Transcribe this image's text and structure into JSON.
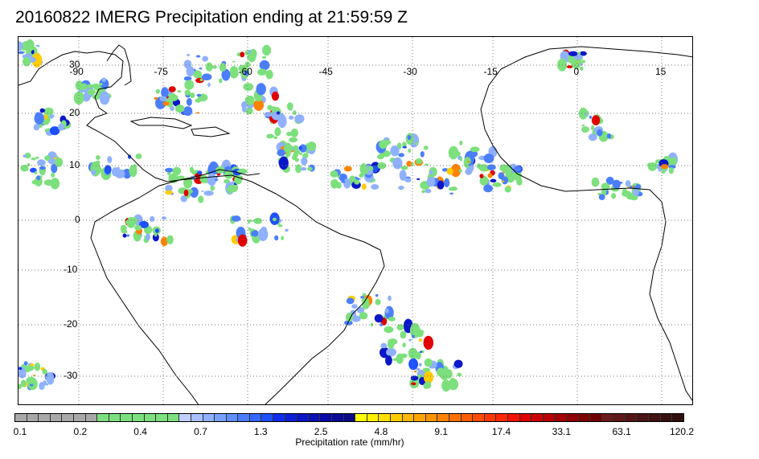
{
  "title": "20160822 IMERG Precipitation ending at 21:59:59 Z",
  "map": {
    "lon_labels": [
      "-90",
      "-75",
      "-60",
      "-45",
      "-30",
      "-15",
      "0",
      "15"
    ],
    "lat_labels": [
      "30",
      "20",
      "10",
      "0",
      "-10",
      "-20",
      "-30"
    ],
    "grid": "dotted",
    "coastline_color": "#000000"
  },
  "colorbar": {
    "tick_labels": [
      "0.1",
      "0.2",
      "0.4",
      "0.7",
      "1.3",
      "2.5",
      "4.8",
      "9.1",
      "17.4",
      "33.1",
      "63.1",
      "120.2"
    ],
    "label": "Precipitation rate (mm/hr)",
    "colors": [
      "#a8a8a8",
      "#a8a8a8",
      "#a8a8a8",
      "#a8a8a8",
      "#a8a8a8",
      "#a8a8a8",
      "#a8a8a8",
      "#7ce07c",
      "#7ce07c",
      "#7ce07c",
      "#7ce07c",
      "#7ce07c",
      "#7ce07c",
      "#7ce07c",
      "#c0cfff",
      "#a8c0ff",
      "#8fb1ff",
      "#77a2ff",
      "#6090ff",
      "#4a7eff",
      "#3468ff",
      "#1e50ff",
      "#0f2ef0",
      "#0b1fd8",
      "#0a16c8",
      "#0a10b8",
      "#0a0aa8",
      "#0a0a98",
      "#0a0a8a",
      "#ffff00",
      "#ffee00",
      "#ffdd00",
      "#ffcc00",
      "#ffb800",
      "#ffa500",
      "#ff9400",
      "#ff8200",
      "#ff7000",
      "#ff5e00",
      "#ff4c00",
      "#ff3a00",
      "#ff2800",
      "#f01400",
      "#e00000",
      "#cc0000",
      "#b80000",
      "#a40000",
      "#900000",
      "#800000",
      "#700000",
      "#6a1a1a",
      "#601818",
      "#561616",
      "#4c1414",
      "#421212",
      "#381010",
      "#300e0e"
    ]
  }
}
